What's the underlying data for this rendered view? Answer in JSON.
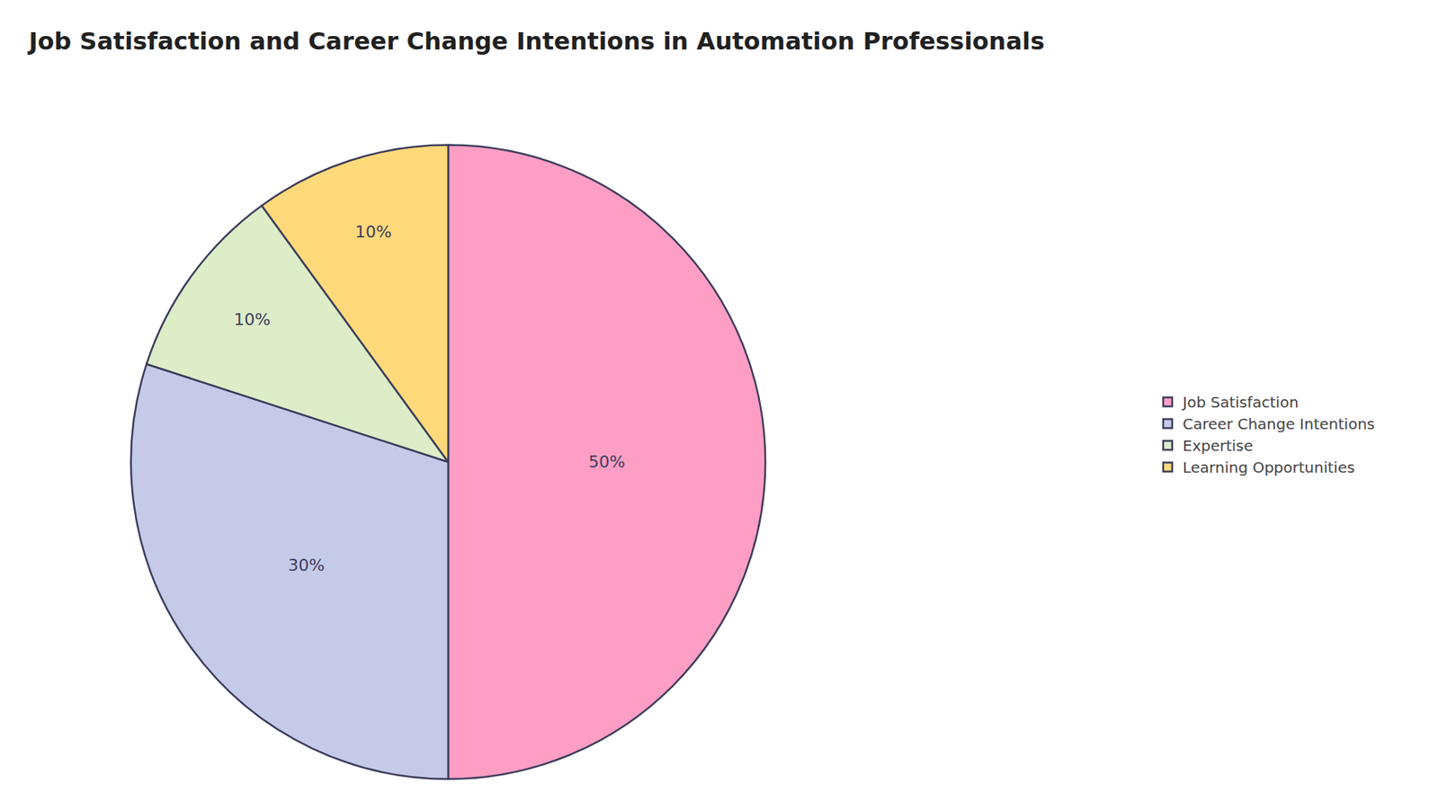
{
  "chart_data": {
    "type": "pie",
    "title": "Job Satisfaction and Career Change Intentions in Automation Professionals",
    "categories": [
      "Job Satisfaction",
      "Career Change Intentions",
      "Expertise",
      "Learning Opportunities"
    ],
    "values": [
      50,
      30,
      10,
      10
    ],
    "value_labels": [
      "50%",
      "30%",
      "10%",
      "10%"
    ],
    "colors": [
      "#FF9EC4",
      "#C5CAE9",
      "#DCEDC8",
      "#FFD97A"
    ],
    "data_labels": true,
    "legend": "right"
  }
}
